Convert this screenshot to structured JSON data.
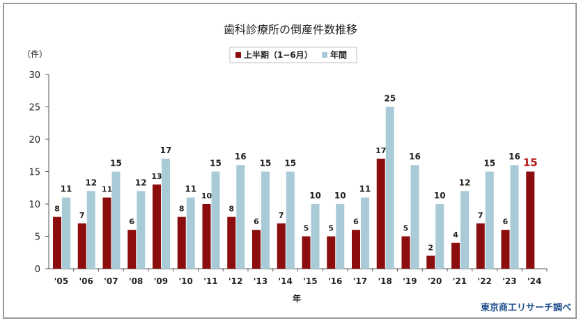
{
  "chart_data": {
    "type": "bar",
    "title": "歯科診療所の倒産件数推移",
    "ylabel": "（件）",
    "xlabel": "年",
    "source": "東京商工リサーチ調べ",
    "ylim": [
      0,
      30
    ],
    "yticks": [
      "0",
      "5",
      "10",
      "15",
      "20",
      "25",
      "30"
    ],
    "grid": false,
    "legend_position": "top-center",
    "categories": [
      "'05",
      "'06",
      "'07",
      "'08",
      "'09",
      "'10",
      "'11",
      "'12",
      "'13",
      "'14",
      "'15",
      "'16",
      "'17",
      "'18",
      "'19",
      "'20",
      "'21",
      "'22",
      "'23",
      "'24"
    ],
    "series": [
      {
        "name": "上半期（1−6月）",
        "color": "#8b0d0d",
        "values": [
          8,
          7,
          11,
          6,
          13,
          8,
          10,
          8,
          6,
          7,
          5,
          5,
          6,
          17,
          5,
          2,
          4,
          7,
          6,
          15
        ]
      },
      {
        "name": "年間",
        "color": "#a9cbd8",
        "values": [
          11,
          12,
          15,
          12,
          17,
          11,
          15,
          16,
          15,
          15,
          10,
          10,
          11,
          25,
          16,
          10,
          12,
          15,
          16,
          null
        ]
      }
    ],
    "highlight": {
      "category": "'24",
      "series": 0,
      "color": "#b01010"
    }
  }
}
